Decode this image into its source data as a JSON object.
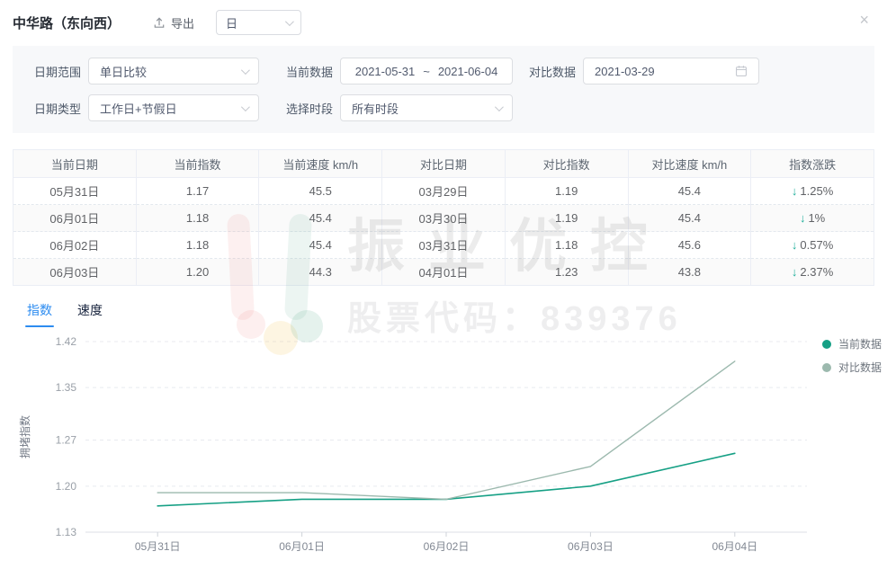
{
  "colors": {
    "accent_blue": "#2d8cf0",
    "series_current": "#16a085",
    "series_compare": "#9cb9ae",
    "down_arrow_teal": "#1fae9a"
  },
  "header": {
    "title": "中华路（东向西）",
    "export_label": "导出",
    "granularity_value": "日",
    "close_glyph": "×"
  },
  "filters": {
    "date_range": {
      "label": "日期范围",
      "value": "单日比较"
    },
    "current_data": {
      "label": "当前数据",
      "start": "2021-05-31",
      "separator": "~",
      "end": "2021-06-04"
    },
    "compare_data": {
      "label": "对比数据",
      "value": "2021-03-29"
    },
    "date_type": {
      "label": "日期类型",
      "value": "工作日+节假日"
    },
    "time_period": {
      "label": "选择时段",
      "value": "所有时段"
    }
  },
  "table": {
    "columns": [
      "当前日期",
      "当前指数",
      "当前速度 km/h",
      "对比日期",
      "对比指数",
      "对比速度 km/h",
      "指数涨跌"
    ],
    "down_arrow_glyph": "↓",
    "rows": [
      {
        "current_date": "05月31日",
        "current_index": "1.17",
        "current_speed": "45.5",
        "compare_date": "03月29日",
        "compare_index": "1.19",
        "compare_speed": "45.4",
        "change": "1.25%",
        "change_direction": "down"
      },
      {
        "current_date": "06月01日",
        "current_index": "1.18",
        "current_speed": "45.4",
        "compare_date": "03月30日",
        "compare_index": "1.19",
        "compare_speed": "45.4",
        "change": "1%",
        "change_direction": "down"
      },
      {
        "current_date": "06月02日",
        "current_index": "1.18",
        "current_speed": "45.4",
        "compare_date": "03月31日",
        "compare_index": "1.18",
        "compare_speed": "45.6",
        "change": "0.57%",
        "change_direction": "down"
      },
      {
        "current_date": "06月03日",
        "current_index": "1.20",
        "current_speed": "44.3",
        "compare_date": "04月01日",
        "compare_index": "1.23",
        "compare_speed": "43.8",
        "change": "2.37%",
        "change_direction": "down"
      }
    ]
  },
  "tabs": [
    {
      "label": "指数",
      "active": true
    },
    {
      "label": "速度",
      "active": false
    }
  ],
  "watermark": {
    "text": "振业优控",
    "subtext": "股票代码：839376"
  },
  "chart_data": {
    "type": "line",
    "title": "",
    "categories": [
      "05月31日",
      "06月01日",
      "06月02日",
      "06月03日",
      "06月04日"
    ],
    "series": [
      {
        "name": "当前数据",
        "color": "#16a085",
        "values": [
          1.17,
          1.18,
          1.18,
          1.2,
          1.25
        ]
      },
      {
        "name": "对比数据",
        "color": "#9cb9ae",
        "values": [
          1.19,
          1.19,
          1.18,
          1.23,
          1.39
        ]
      }
    ],
    "xlabel": "",
    "ylabel": "拥堵指数",
    "yticks": [
      "1.13",
      "1.20",
      "1.27",
      "1.35",
      "1.42"
    ],
    "ylim": [
      1.13,
      1.42
    ],
    "grid": "horizontal-dashed",
    "legend_position": "top-right"
  }
}
